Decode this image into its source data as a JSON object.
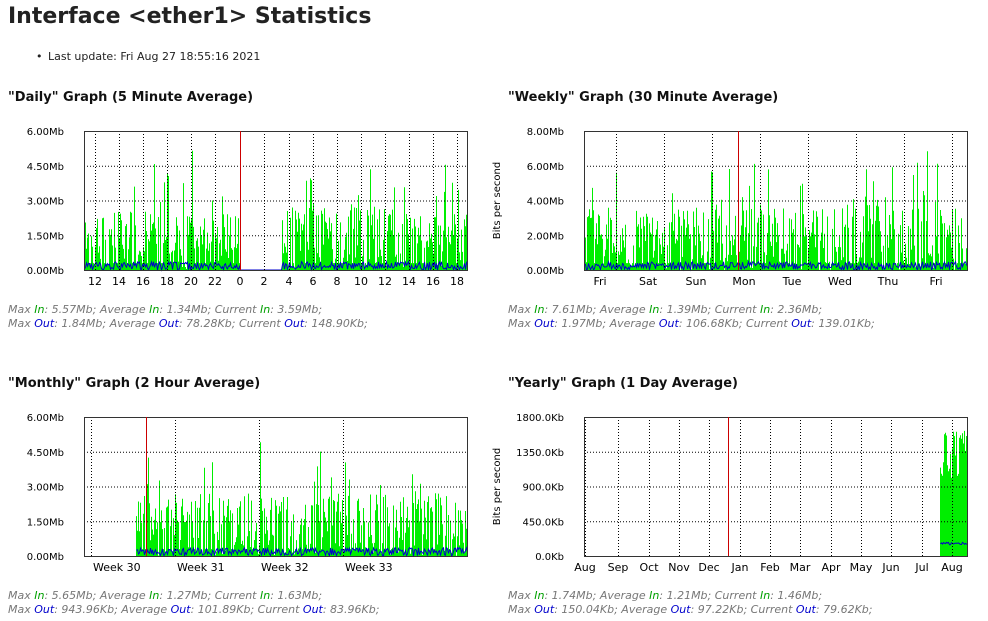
{
  "page": {
    "title": "Interface <ether1> Statistics",
    "last_update": "Last update: Fri Aug 27 18:55:16 2021"
  },
  "colors": {
    "in": "#00ee00",
    "out": "#0000cc",
    "now_line": "#cc0000",
    "grid": "#000000"
  },
  "graphs": [
    {
      "id": "daily",
      "title": "\"Daily\" Graph (5 Minute Average)",
      "ylabel": "",
      "y_ticks": [
        "6.00Mb",
        "4.50Mb",
        "3.00Mb",
        "1.50Mb",
        "0.00Mb"
      ],
      "x_labels": [
        "12",
        "14",
        "16",
        "18",
        "20",
        "22",
        "0",
        "2",
        "4",
        "6",
        "8",
        "10",
        "12",
        "14",
        "16",
        "18"
      ],
      "stats": {
        "in": [
          {
            "label": "Max",
            "dir": "In",
            "value": "5.57Mb"
          },
          {
            "label": "Average",
            "dir": "In",
            "value": "1.34Mb"
          },
          {
            "label": "Current",
            "dir": "In",
            "value": "3.59Mb"
          }
        ],
        "out": [
          {
            "label": "Max",
            "dir": "Out",
            "value": "1.84Mb"
          },
          {
            "label": "Average",
            "dir": "Out",
            "value": "78.28Kb"
          },
          {
            "label": "Current",
            "dir": "Out",
            "value": "148.90Kb"
          }
        ]
      }
    },
    {
      "id": "weekly",
      "title": "\"Weekly\" Graph (30 Minute Average)",
      "ylabel": "Bits per second",
      "y_ticks": [
        "8.00Mb",
        "6.00Mb",
        "4.00Mb",
        "2.00Mb",
        "0.00Mb"
      ],
      "x_labels": [
        "Fri",
        "Sat",
        "Sun",
        "Mon",
        "Tue",
        "Wed",
        "Thu",
        "Fri"
      ],
      "stats": {
        "in": [
          {
            "label": "Max",
            "dir": "In",
            "value": "7.61Mb"
          },
          {
            "label": "Average",
            "dir": "In",
            "value": "1.39Mb"
          },
          {
            "label": "Current",
            "dir": "In",
            "value": "2.36Mb"
          }
        ],
        "out": [
          {
            "label": "Max",
            "dir": "Out",
            "value": "1.97Mb"
          },
          {
            "label": "Average",
            "dir": "Out",
            "value": "106.68Kb"
          },
          {
            "label": "Current",
            "dir": "Out",
            "value": "139.01Kb"
          }
        ]
      }
    },
    {
      "id": "monthly",
      "title": "\"Monthly\" Graph (2 Hour Average)",
      "ylabel": "",
      "y_ticks": [
        "6.00Mb",
        "4.50Mb",
        "3.00Mb",
        "1.50Mb",
        "0.00Mb"
      ],
      "x_labels": [
        "Week 30",
        "Week 31",
        "Week 32",
        "Week 33"
      ],
      "stats": {
        "in": [
          {
            "label": "Max",
            "dir": "In",
            "value": "5.65Mb"
          },
          {
            "label": "Average",
            "dir": "In",
            "value": "1.27Mb"
          },
          {
            "label": "Current",
            "dir": "In",
            "value": "1.63Mb"
          }
        ],
        "out": [
          {
            "label": "Max",
            "dir": "Out",
            "value": "943.96Kb"
          },
          {
            "label": "Average",
            "dir": "Out",
            "value": "101.89Kb"
          },
          {
            "label": "Current",
            "dir": "Out",
            "value": "83.96Kb"
          }
        ]
      }
    },
    {
      "id": "yearly",
      "title": "\"Yearly\" Graph (1 Day Average)",
      "ylabel": "Bits per second",
      "y_ticks": [
        "1800.0Kb",
        "1350.0Kb",
        "900.0Kb",
        "450.0Kb",
        "0.0Kb"
      ],
      "x_labels": [
        "Aug",
        "Sep",
        "Oct",
        "Nov",
        "Dec",
        "Jan",
        "Feb",
        "Mar",
        "Apr",
        "May",
        "Jun",
        "Jul",
        "Aug"
      ],
      "stats": {
        "in": [
          {
            "label": "Max",
            "dir": "In",
            "value": "1.74Mb"
          },
          {
            "label": "Average",
            "dir": "In",
            "value": "1.21Mb"
          },
          {
            "label": "Current",
            "dir": "In",
            "value": "1.46Mb"
          }
        ],
        "out": [
          {
            "label": "Max",
            "dir": "Out",
            "value": "150.04Kb"
          },
          {
            "label": "Average",
            "dir": "Out",
            "value": "97.22Kb"
          },
          {
            "label": "Current",
            "dir": "Out",
            "value": "79.62Kb"
          }
        ]
      }
    }
  ]
}
